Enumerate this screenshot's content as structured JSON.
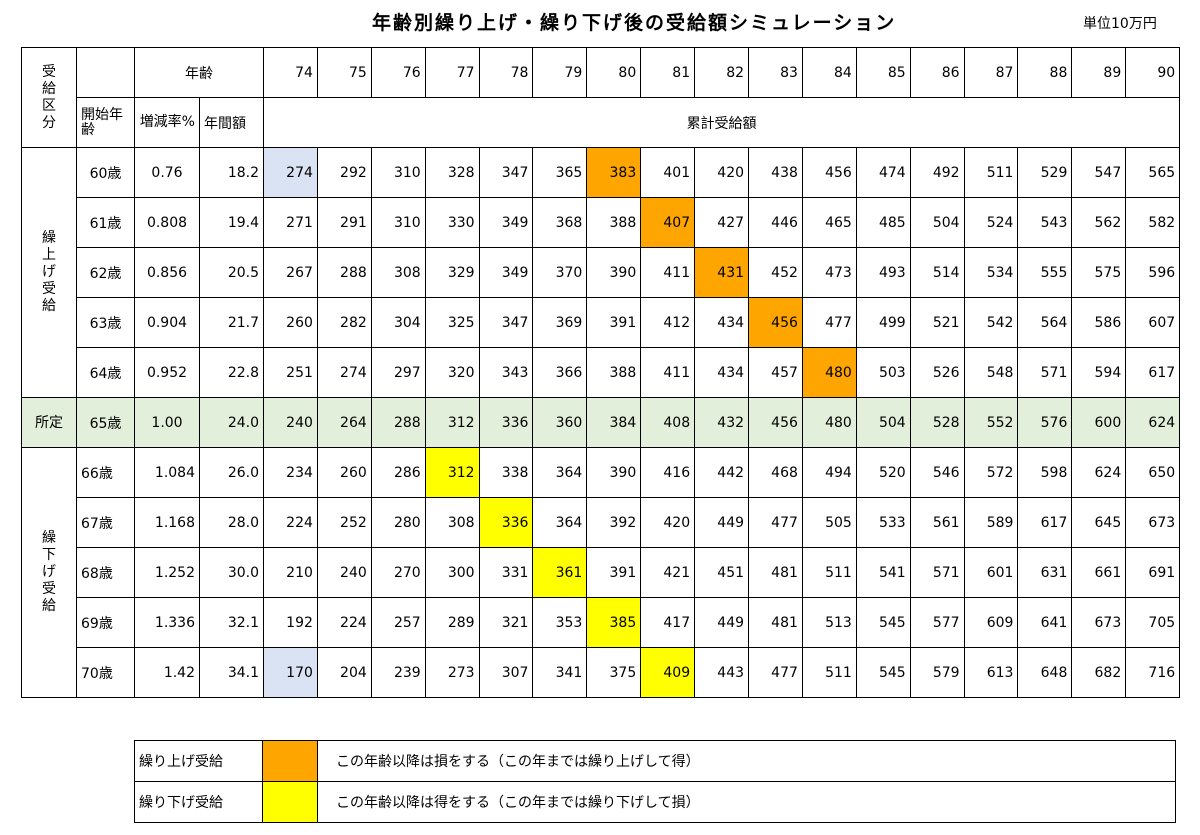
{
  "title": "年齢別繰り上げ・繰り下げ後の受給額シミュレーション",
  "unit": "単位10万円",
  "header": {
    "category": "受給区分",
    "age_label": "年齢",
    "start_age": "開始年齢",
    "rate": "増減率%",
    "annual": "年間額",
    "cumulative": "累計受給額"
  },
  "groups": {
    "early": "繰上げ受給",
    "standard": "所定",
    "deferred": "繰下げ受給"
  },
  "legend": [
    {
      "label": "繰り上げ受給",
      "color": "#ffa500",
      "description": "この年齢以降は損をする（この年までは繰り上げして得）"
    },
    {
      "label": "繰り下げ受給",
      "color": "#ffff00",
      "description": "この年齢以降は得をする（この年までは繰り下げして損）"
    }
  ],
  "chart_data": {
    "type": "table",
    "title": "年齢別繰り上げ・繰り下げ後の受給額シミュレーション",
    "unit": "単位10万円",
    "ages": [
      "74",
      "75",
      "76",
      "77",
      "78",
      "79",
      "80",
      "81",
      "82",
      "83",
      "84",
      "85",
      "86",
      "87",
      "88",
      "89",
      "90"
    ],
    "rows": [
      {
        "group": "early",
        "start": "60歳",
        "rate": "0.76",
        "annual": "18.2",
        "highlight_col": 6,
        "highlight": "orange",
        "blue_col": 0,
        "values": [
          "274",
          "292",
          "310",
          "328",
          "347",
          "365",
          "383",
          "401",
          "420",
          "438",
          "456",
          "474",
          "492",
          "511",
          "529",
          "547",
          "565"
        ]
      },
      {
        "group": "early",
        "start": "61歳",
        "rate": "0.808",
        "annual": "19.4",
        "highlight_col": 7,
        "highlight": "orange",
        "values": [
          "271",
          "291",
          "310",
          "330",
          "349",
          "368",
          "388",
          "407",
          "427",
          "446",
          "465",
          "485",
          "504",
          "524",
          "543",
          "562",
          "582"
        ]
      },
      {
        "group": "early",
        "start": "62歳",
        "rate": "0.856",
        "annual": "20.5",
        "highlight_col": 8,
        "highlight": "orange",
        "values": [
          "267",
          "288",
          "308",
          "329",
          "349",
          "370",
          "390",
          "411",
          "431",
          "452",
          "473",
          "493",
          "514",
          "534",
          "555",
          "575",
          "596"
        ]
      },
      {
        "group": "early",
        "start": "63歳",
        "rate": "0.904",
        "annual": "21.7",
        "highlight_col": 9,
        "highlight": "orange",
        "values": [
          "260",
          "282",
          "304",
          "325",
          "347",
          "369",
          "391",
          "412",
          "434",
          "456",
          "477",
          "499",
          "521",
          "542",
          "564",
          "586",
          "607"
        ]
      },
      {
        "group": "early",
        "start": "64歳",
        "rate": "0.952",
        "annual": "22.8",
        "highlight_col": 10,
        "highlight": "orange",
        "values": [
          "251",
          "274",
          "297",
          "320",
          "343",
          "366",
          "388",
          "411",
          "434",
          "457",
          "480",
          "503",
          "526",
          "548",
          "571",
          "594",
          "617"
        ]
      },
      {
        "group": "standard",
        "start": "65歳",
        "rate": "1.00",
        "annual": "24.0",
        "values": [
          "240",
          "264",
          "288",
          "312",
          "336",
          "360",
          "384",
          "408",
          "432",
          "456",
          "480",
          "504",
          "528",
          "552",
          "576",
          "600",
          "624"
        ]
      },
      {
        "group": "deferred",
        "start": "66歳",
        "rate": "1.084",
        "annual": "26.0",
        "highlight_col": 3,
        "highlight": "yellow",
        "values": [
          "234",
          "260",
          "286",
          "312",
          "338",
          "364",
          "390",
          "416",
          "442",
          "468",
          "494",
          "520",
          "546",
          "572",
          "598",
          "624",
          "650"
        ]
      },
      {
        "group": "deferred",
        "start": "67歳",
        "rate": "1.168",
        "annual": "28.0",
        "highlight_col": 4,
        "highlight": "yellow",
        "values": [
          "224",
          "252",
          "280",
          "308",
          "336",
          "364",
          "392",
          "420",
          "449",
          "477",
          "505",
          "533",
          "561",
          "589",
          "617",
          "645",
          "673"
        ]
      },
      {
        "group": "deferred",
        "start": "68歳",
        "rate": "1.252",
        "annual": "30.0",
        "highlight_col": 5,
        "highlight": "yellow",
        "values": [
          "210",
          "240",
          "270",
          "300",
          "331",
          "361",
          "391",
          "421",
          "451",
          "481",
          "511",
          "541",
          "571",
          "601",
          "631",
          "661",
          "691"
        ]
      },
      {
        "group": "deferred",
        "start": "69歳",
        "rate": "1.336",
        "annual": "32.1",
        "highlight_col": 6,
        "highlight": "yellow",
        "values": [
          "192",
          "224",
          "257",
          "289",
          "321",
          "353",
          "385",
          "417",
          "449",
          "481",
          "513",
          "545",
          "577",
          "609",
          "641",
          "673",
          "705"
        ]
      },
      {
        "group": "deferred",
        "start": "70歳",
        "rate": "1.42",
        "annual": "34.1",
        "highlight_col": 7,
        "highlight": "yellow",
        "blue_col": 0,
        "values": [
          "170",
          "204",
          "239",
          "273",
          "307",
          "341",
          "375",
          "409",
          "443",
          "477",
          "511",
          "545",
          "579",
          "613",
          "648",
          "682",
          "716"
        ]
      }
    ]
  }
}
